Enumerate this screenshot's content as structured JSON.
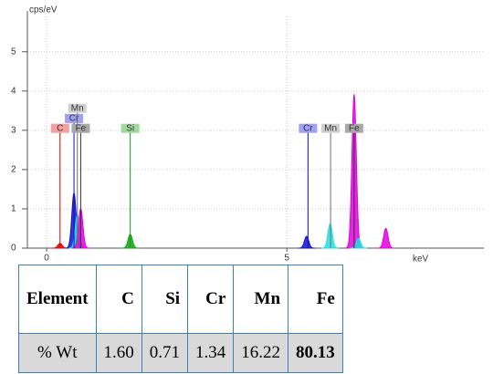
{
  "chart_data": {
    "type": "spectrum",
    "y_label": "cps/eV",
    "x_label": "keV",
    "xlim": [
      -0.4,
      9.1
    ],
    "ylim": [
      0,
      5.9
    ],
    "xticks": [
      0,
      5
    ],
    "yticks": [
      0,
      1,
      2,
      3,
      4,
      5
    ],
    "grid": true,
    "peaks": [
      {
        "energy": 0.28,
        "height": 0.12,
        "color": "#e00000"
      },
      {
        "energy": 0.57,
        "height": 1.4,
        "color": "#1010d0"
      },
      {
        "energy": 0.64,
        "height": 0.85,
        "color": "#20e0e0"
      },
      {
        "energy": 0.71,
        "height": 1.0,
        "color": "#e000e0"
      },
      {
        "energy": 1.74,
        "height": 0.35,
        "color": "#10a010"
      },
      {
        "energy": 5.41,
        "height": 0.3,
        "color": "#1010d0"
      },
      {
        "energy": 5.9,
        "height": 0.62,
        "color": "#20e0e0"
      },
      {
        "energy": 6.4,
        "height": 3.9,
        "color": "#e000e0"
      },
      {
        "energy": 6.49,
        "height": 0.25,
        "color": "#20e0e0"
      },
      {
        "energy": 7.06,
        "height": 0.5,
        "color": "#e000e0"
      }
    ],
    "markers": [
      {
        "label": "C",
        "energy": 0.28,
        "level": 3.05,
        "color": "#d00000",
        "box": "#f4a0a0"
      },
      {
        "label": "Cr",
        "energy": 0.57,
        "level": 3.3,
        "color": "#1010c0",
        "box": "#a0a0f4"
      },
      {
        "label": "Mn",
        "energy": 0.64,
        "level": 3.56,
        "color": "#707070",
        "box": "#d0d0d0"
      },
      {
        "label": "Fe",
        "energy": 0.71,
        "level": 3.05,
        "color": "#303030",
        "box": "#a8a8a8"
      },
      {
        "label": "Si",
        "energy": 1.74,
        "level": 3.05,
        "color": "#10a010",
        "box": "#a0d8a0"
      },
      {
        "label": "Cr",
        "energy": 5.44,
        "level": 3.05,
        "color": "#1010c0",
        "box": "#a0a0f4"
      },
      {
        "label": "Mn",
        "energy": 5.91,
        "level": 3.05,
        "color": "#707070",
        "box": "#d0d0d0"
      },
      {
        "label": "Fe",
        "energy": 6.4,
        "level": 3.05,
        "color": "#303030",
        "box": "#a8a8a8"
      }
    ]
  },
  "table": {
    "header": [
      "Element",
      "C",
      "Si",
      "Cr",
      "Mn",
      "Fe"
    ],
    "rows": [
      [
        "% Wt",
        "1.60",
        "0.71",
        "1.34",
        "16.22",
        "80.13"
      ]
    ]
  }
}
